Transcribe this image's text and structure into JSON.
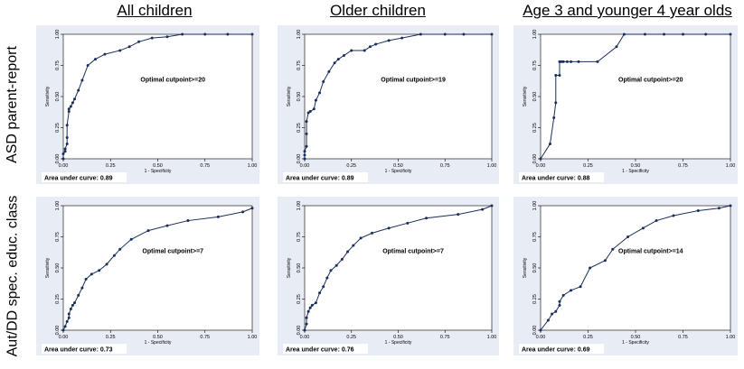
{
  "column_titles": [
    "All children",
    "Older children",
    "Age 3 and younger 4 year olds"
  ],
  "row_titles": [
    "ASD parent-report",
    "Aut/DD spec. educ. class"
  ],
  "chart_data": [
    {
      "type": "line",
      "row": 0,
      "col": 0,
      "xlabel": "1 - Specificity",
      "ylabel": "Sensitivity",
      "xlim": [
        0,
        1
      ],
      "ylim": [
        0,
        1
      ],
      "xticks": [
        "0.00",
        "0.25",
        "0.50",
        "0.75",
        "1.00"
      ],
      "yticks": [
        "0.00",
        "0.25",
        "0.50",
        "0.75",
        "1.00"
      ],
      "annotation": "Optimal cutpoint>=20",
      "auc_label": "Area under curve: 0.89",
      "series": [
        {
          "color": "#1a2e5c",
          "x": [
            0,
            0,
            0.01,
            0.01,
            0.02,
            0.02,
            0.02,
            0.03,
            0.03,
            0.04,
            0.05,
            0.06,
            0.08,
            0.1,
            0.13,
            0.17,
            0.22,
            0.3,
            0.35,
            0.4,
            0.47,
            0.55,
            0.63,
            0.75,
            0.87,
            1.0
          ],
          "y": [
            0,
            0.04,
            0.06,
            0.08,
            0.12,
            0.17,
            0.27,
            0.38,
            0.4,
            0.42,
            0.45,
            0.48,
            0.55,
            0.63,
            0.75,
            0.8,
            0.84,
            0.87,
            0.9,
            0.94,
            0.97,
            0.98,
            1.0,
            1.0,
            1.0,
            1.0
          ]
        }
      ]
    },
    {
      "type": "line",
      "row": 0,
      "col": 1,
      "xlabel": "1 - Specificity",
      "ylabel": "Sensitivity",
      "xlim": [
        0,
        1
      ],
      "ylim": [
        0,
        1
      ],
      "xticks": [
        "0.00",
        "0.25",
        "0.50",
        "0.75",
        "1.00"
      ],
      "yticks": [
        "0.00",
        "0.25",
        "0.50",
        "0.75",
        "1.00"
      ],
      "annotation": "Optimal cutpoint>=19",
      "auc_label": "Area under curve: 0.89",
      "series": [
        {
          "color": "#1a2e5c",
          "x": [
            0,
            0,
            0,
            0.01,
            0.01,
            0.01,
            0.02,
            0.03,
            0.05,
            0.06,
            0.08,
            0.1,
            0.13,
            0.16,
            0.18,
            0.21,
            0.25,
            0.32,
            0.35,
            0.38,
            0.45,
            0.52,
            0.62,
            0.75,
            0.85,
            1.0
          ],
          "y": [
            0,
            0.03,
            0.06,
            0.1,
            0.2,
            0.3,
            0.37,
            0.38,
            0.4,
            0.47,
            0.53,
            0.62,
            0.7,
            0.77,
            0.8,
            0.83,
            0.87,
            0.87,
            0.9,
            0.92,
            0.95,
            0.97,
            1.0,
            1.0,
            1.0,
            1.0
          ]
        }
      ]
    },
    {
      "type": "line",
      "row": 0,
      "col": 2,
      "xlabel": "1 - Specificity",
      "ylabel": "Sensitivity",
      "xlim": [
        0,
        1
      ],
      "ylim": [
        0,
        1
      ],
      "xticks": [
        "0.00",
        "0.25",
        "0.50",
        "0.75",
        "1.00"
      ],
      "yticks": [
        "0.00",
        "0.25",
        "0.50",
        "0.75",
        "1.00"
      ],
      "annotation": "Optimal cutpoint>=20",
      "auc_label": "Area under curve: 0.88",
      "series": [
        {
          "color": "#1a2e5c",
          "x": [
            0,
            0.05,
            0.07,
            0.08,
            0.08,
            0.1,
            0.1,
            0.11,
            0.12,
            0.14,
            0.16,
            0.2,
            0.3,
            0.4,
            0.44,
            0.55,
            0.65,
            0.75,
            0.87,
            1.0
          ],
          "y": [
            0,
            0.12,
            0.33,
            0.45,
            0.67,
            0.67,
            0.78,
            0.78,
            0.78,
            0.78,
            0.78,
            0.78,
            0.78,
            0.9,
            1.0,
            1.0,
            1.0,
            1.0,
            1.0,
            1.0
          ]
        }
      ]
    },
    {
      "type": "line",
      "row": 1,
      "col": 0,
      "xlabel": "1 - Specificity",
      "ylabel": "Sensitivity",
      "xlim": [
        0,
        1
      ],
      "ylim": [
        0,
        1
      ],
      "xticks": [
        "0.00",
        "0.25",
        "0.50",
        "0.75",
        "1.00"
      ],
      "yticks": [
        "0.00",
        "0.25",
        "0.50",
        "0.75",
        "1.00"
      ],
      "annotation": "Optimal cutpoint>=7",
      "auc_label": "Area under curve: 0.73",
      "series": [
        {
          "color": "#1a2e5c",
          "x": [
            0,
            0.01,
            0.02,
            0.03,
            0.03,
            0.04,
            0.05,
            0.06,
            0.08,
            0.1,
            0.12,
            0.15,
            0.19,
            0.23,
            0.27,
            0.3,
            0.36,
            0.45,
            0.55,
            0.66,
            0.82,
            0.95,
            1.0
          ],
          "y": [
            0,
            0.03,
            0.07,
            0.1,
            0.13,
            0.17,
            0.2,
            0.22,
            0.28,
            0.34,
            0.41,
            0.45,
            0.48,
            0.53,
            0.6,
            0.65,
            0.73,
            0.8,
            0.84,
            0.88,
            0.91,
            0.95,
            0.98
          ]
        }
      ]
    },
    {
      "type": "line",
      "row": 1,
      "col": 1,
      "xlabel": "1 - Specificity",
      "ylabel": "Sensitivity",
      "xlim": [
        0,
        1
      ],
      "ylim": [
        0,
        1
      ],
      "xticks": [
        "0.00",
        "0.25",
        "0.50",
        "0.75",
        "1.00"
      ],
      "yticks": [
        "0.00",
        "0.25",
        "0.50",
        "0.75",
        "1.00"
      ],
      "annotation": "Optimal cutpoint>=7",
      "auc_label": "Area under curve: 0.76",
      "series": [
        {
          "color": "#1a2e5c",
          "x": [
            0,
            0.01,
            0.01,
            0.02,
            0.03,
            0.04,
            0.06,
            0.08,
            0.1,
            0.12,
            0.14,
            0.17,
            0.2,
            0.23,
            0.26,
            0.3,
            0.36,
            0.45,
            0.55,
            0.65,
            0.82,
            0.95,
            1.0
          ],
          "y": [
            0,
            0.05,
            0.1,
            0.15,
            0.18,
            0.2,
            0.22,
            0.3,
            0.35,
            0.42,
            0.48,
            0.52,
            0.57,
            0.63,
            0.68,
            0.74,
            0.78,
            0.82,
            0.86,
            0.9,
            0.93,
            0.97,
            1.0
          ]
        }
      ]
    },
    {
      "type": "line",
      "row": 1,
      "col": 2,
      "xlabel": "1 - Specificity",
      "ylabel": "Sensitivity",
      "xlim": [
        0,
        1
      ],
      "ylim": [
        0,
        1
      ],
      "xticks": [
        "0.00",
        "0.25",
        "0.50",
        "0.75",
        "1.00"
      ],
      "yticks": [
        "0.00",
        "0.25",
        "0.50",
        "0.75",
        "1.00"
      ],
      "annotation": "Optimal cutpoint>=14",
      "auc_label": "Area under curve: 0.69",
      "series": [
        {
          "color": "#1a2e5c",
          "x": [
            0,
            0.04,
            0.06,
            0.08,
            0.1,
            0.1,
            0.12,
            0.16,
            0.21,
            0.26,
            0.34,
            0.38,
            0.46,
            0.54,
            0.61,
            0.7,
            0.83,
            0.94,
            1.0
          ],
          "y": [
            0,
            0.08,
            0.13,
            0.15,
            0.2,
            0.23,
            0.28,
            0.32,
            0.35,
            0.5,
            0.56,
            0.65,
            0.75,
            0.82,
            0.88,
            0.92,
            0.96,
            0.98,
            1.0
          ]
        }
      ]
    }
  ]
}
